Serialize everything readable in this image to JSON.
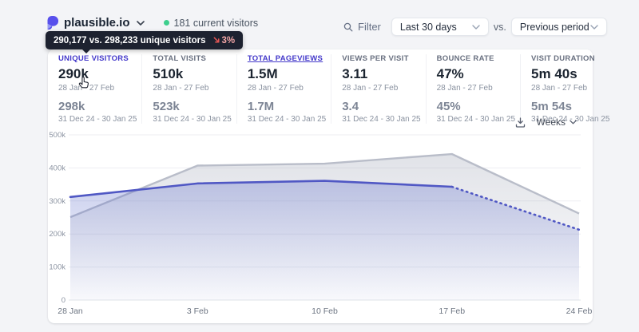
{
  "brand": {
    "site_name": "plausible.io",
    "current_visitors": "181 current visitors"
  },
  "tooltip": {
    "text": "290,177 vs. 298,233 unique visitors",
    "change": "3%",
    "direction": "down"
  },
  "toolbar": {
    "filter_label": "Filter",
    "period_selected": "Last 30 days",
    "vs_label": "vs.",
    "compare_selected": "Previous period"
  },
  "metrics": [
    {
      "label": "UNIQUE VISITORS",
      "value": "290k",
      "period": "28 Jan - 27 Feb",
      "prev_value": "298k",
      "prev_period": "31 Dec 24 - 30 Jan 25",
      "state": "hovered"
    },
    {
      "label": "TOTAL VISITS",
      "value": "510k",
      "period": "28 Jan - 27 Feb",
      "prev_value": "523k",
      "prev_period": "31 Dec 24 - 30 Jan 25",
      "state": ""
    },
    {
      "label": "TOTAL PAGEVIEWS",
      "value": "1.5M",
      "period": "28 Jan - 27 Feb",
      "prev_value": "1.7M",
      "prev_period": "31 Dec 24 - 30 Jan 25",
      "state": "selected"
    },
    {
      "label": "VIEWS PER VISIT",
      "value": "3.11",
      "period": "28 Jan - 27 Feb",
      "prev_value": "3.4",
      "prev_period": "31 Dec 24 - 30 Jan 25",
      "state": ""
    },
    {
      "label": "BOUNCE RATE",
      "value": "47%",
      "period": "28 Jan - 27 Feb",
      "prev_value": "45%",
      "prev_period": "31 Dec 24 - 30 Jan 25",
      "state": ""
    },
    {
      "label": "VISIT DURATION",
      "value": "5m 40s",
      "period": "28 Jan - 27 Feb",
      "prev_value": "5m 54s",
      "prev_period": "31 Dec 24 - 30 Jan 25",
      "state": ""
    }
  ],
  "chart_controls": {
    "interval": "Weeks"
  },
  "chart_data": {
    "type": "area",
    "x": [
      "28 Jan",
      "3 Feb",
      "10 Feb",
      "17 Feb",
      "24 Feb"
    ],
    "series": [
      {
        "name": "Unique visitors 28 Jan - 27 Feb",
        "values": [
          312000,
          353000,
          361000,
          343000,
          213000
        ],
        "color": "#5058c4",
        "fill": "#6574cd",
        "style": "solid-then-dotted",
        "dotted_from_index": 3
      },
      {
        "name": "Unique visitors 31 Dec 24 - 30 Jan 25",
        "values": [
          251000,
          407000,
          413000,
          442000,
          262000
        ],
        "color": "#b9bdc9",
        "fill": "#9aa0b2",
        "style": "solid"
      }
    ],
    "ylim": [
      0,
      500000
    ],
    "yticks": [
      0,
      100000,
      200000,
      300000,
      400000,
      500000
    ],
    "ytick_labels": [
      "0",
      "100k",
      "200k",
      "300k",
      "400k",
      "500k"
    ],
    "grid": true,
    "legend": "none"
  },
  "colors": {
    "accent_indigo": "#4338ca",
    "line_current": "#5058c4",
    "line_previous": "#b9bdc9",
    "tooltip_bg": "#1d2230",
    "negative_red": "#e25555",
    "live_green": "#3ecf8e"
  }
}
